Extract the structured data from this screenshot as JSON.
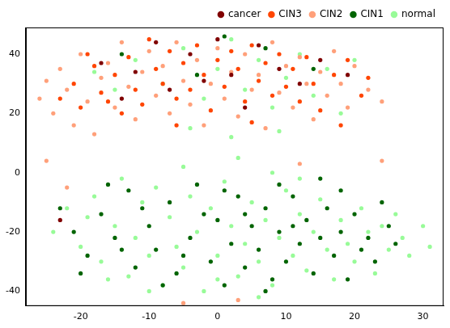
{
  "chart_data": {
    "type": "scatter",
    "legend": "upper right",
    "grid": false,
    "marker": "circle",
    "xlim": [
      -28,
      33
    ],
    "xticks": [
      -20,
      -10,
      0,
      10,
      20,
      30
    ],
    "ylim": [
      -45,
      49
    ],
    "yticks": [
      -40,
      -20,
      0,
      20,
      40
    ],
    "series": [
      {
        "name": "normal",
        "color": "#98fb98",
        "x": [
          -22,
          -20,
          -18,
          -17,
          -15,
          -14,
          -13,
          -12,
          -11,
          -10,
          -9,
          -8,
          -7,
          -6,
          -5,
          -4,
          -3,
          -2,
          -1,
          0,
          1,
          2,
          3,
          4,
          5,
          6,
          7,
          8,
          9,
          10,
          11,
          12,
          13,
          14,
          15,
          16,
          17,
          18,
          19,
          20,
          21,
          22,
          23,
          24,
          25,
          26,
          27,
          28,
          30,
          31,
          -24,
          -19,
          -16,
          -5,
          3,
          8,
          12,
          -10,
          6,
          0,
          -12,
          -8,
          -5,
          -2,
          0,
          2,
          4,
          6,
          8,
          10,
          12,
          14,
          16,
          18,
          -15,
          -18,
          -4,
          2,
          9,
          20
        ],
        "values": [
          -12,
          -25,
          -8,
          -30,
          -18,
          -2,
          -35,
          -22,
          -10,
          -28,
          -5,
          -38,
          -15,
          -25,
          -32,
          -8,
          -20,
          -40,
          -12,
          -28,
          -3,
          -18,
          -35,
          -24,
          -10,
          -30,
          -16,
          -38,
          -22,
          -6,
          -28,
          -14,
          -33,
          -20,
          -9,
          -26,
          -36,
          -16,
          -24,
          -30,
          -12,
          -20,
          -34,
          -18,
          -26,
          -14,
          -22,
          -28,
          -18,
          -25,
          -20,
          -15,
          -36,
          2,
          5,
          0,
          -2,
          -40,
          -42,
          -36,
          38,
          30,
          42,
          25,
          35,
          45,
          28,
          38,
          22,
          32,
          40,
          26,
          35,
          20,
          28,
          34,
          15,
          12,
          14,
          38
        ]
      },
      {
        "name": "CIN1",
        "color": "#006400",
        "x": [
          -23,
          -21,
          -19,
          -17,
          -15,
          -13,
          -12,
          -10,
          -9,
          -7,
          -6,
          -4,
          -3,
          -1,
          0,
          1,
          2,
          3,
          4,
          5,
          6,
          7,
          8,
          9,
          10,
          11,
          12,
          13,
          14,
          15,
          16,
          17,
          18,
          19,
          20,
          21,
          22,
          23,
          25,
          26,
          -20,
          -16,
          -8,
          -2,
          7,
          11,
          15,
          24,
          -14,
          -5,
          1,
          9,
          -11,
          4,
          18,
          -14,
          -3,
          1,
          7,
          14
        ],
        "values": [
          -12,
          -20,
          -28,
          -14,
          -22,
          -6,
          -32,
          -18,
          -26,
          -10,
          -34,
          -22,
          -4,
          -30,
          -16,
          -38,
          -24,
          -8,
          -32,
          -18,
          -26,
          -12,
          -36,
          -20,
          -30,
          -8,
          -24,
          -16,
          -34,
          -22,
          -12,
          -28,
          -20,
          -36,
          -14,
          -26,
          -22,
          -30,
          -18,
          -24,
          -34,
          -4,
          -38,
          -14,
          -40,
          -18,
          -2,
          -10,
          -26,
          -28,
          -6,
          -4,
          -12,
          -14,
          -6,
          40,
          33,
          46,
          42,
          35
        ]
      },
      {
        "name": "CIN2",
        "color": "#ffa07a",
        "x": [
          -26,
          -25,
          -24,
          -23,
          -22,
          -21,
          -20,
          -19,
          -18,
          -17,
          -16,
          -15,
          -14,
          -13,
          -12,
          -11,
          -10,
          -9,
          -8,
          -7,
          -6,
          -5,
          -4,
          -3,
          -2,
          -1,
          0,
          1,
          2,
          3,
          4,
          5,
          6,
          7,
          8,
          9,
          10,
          11,
          12,
          13,
          14,
          15,
          16,
          17,
          18,
          19,
          20,
          22,
          24,
          -22,
          -25,
          -5,
          3,
          12,
          24
        ],
        "values": [
          25,
          31,
          20,
          35,
          28,
          16,
          40,
          24,
          13,
          32,
          37,
          22,
          44,
          29,
          18,
          34,
          41,
          26,
          36,
          20,
          44,
          31,
          23,
          38,
          16,
          30,
          42,
          25,
          34,
          19,
          40,
          28,
          33,
          15,
          44,
          27,
          36,
          22,
          39,
          30,
          18,
          34,
          26,
          41,
          30,
          22,
          36,
          28,
          24,
          -5,
          4,
          -44,
          -43,
          3,
          4
        ]
      },
      {
        "name": "CIN3",
        "color": "#ff4500",
        "x": [
          -23,
          -21,
          -20,
          -18,
          -17,
          -15,
          -14,
          -13,
          -12,
          -11,
          -10,
          -9,
          -8,
          -7,
          -6,
          -5,
          -4,
          -3,
          -2,
          -1,
          0,
          1,
          2,
          3,
          4,
          5,
          6,
          7,
          8,
          9,
          10,
          11,
          12,
          13,
          14,
          15,
          17,
          19,
          21,
          22,
          -19,
          -6,
          5,
          18,
          -16
        ],
        "values": [
          25,
          30,
          22,
          36,
          27,
          33,
          20,
          39,
          28,
          23,
          45,
          35,
          30,
          41,
          25,
          37,
          28,
          43,
          33,
          21,
          38,
          29,
          41,
          35,
          24,
          43,
          31,
          37,
          26,
          40,
          29,
          35,
          24,
          39,
          30,
          21,
          33,
          38,
          26,
          32,
          40,
          16,
          17,
          16,
          24
        ]
      },
      {
        "name": "cancer",
        "color": "#800000",
        "x": [
          -23,
          -17,
          -12,
          -9,
          -7,
          -4,
          -2,
          0,
          2,
          4,
          6,
          9,
          12,
          15,
          19,
          -14
        ],
        "values": [
          -16,
          37,
          34,
          44,
          28,
          40,
          31,
          45,
          33,
          22,
          43,
          35,
          30,
          38,
          33,
          25
        ]
      }
    ]
  }
}
